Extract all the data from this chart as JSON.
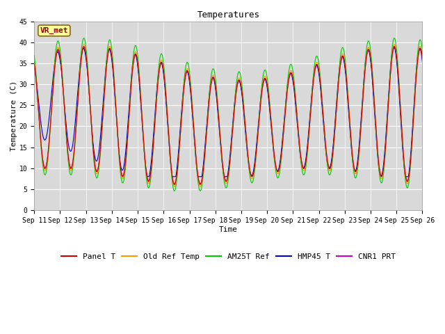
{
  "title": "Temperatures",
  "xlabel": "Time",
  "ylabel": "Temperature (C)",
  "ylim": [
    0,
    45
  ],
  "annotation": "VR_met",
  "legend_entries": [
    "Panel T",
    "Old Ref Temp",
    "AM25T Ref",
    "HMP45 T",
    "CNR1 PRT"
  ],
  "line_colors": [
    "#cc0000",
    "#ff9900",
    "#00cc00",
    "#0000cc",
    "#cc00cc"
  ],
  "background_color": "#d9d9d9",
  "xtick_labels": [
    "Sep 11",
    "Sep 12",
    "Sep 13",
    "Sep 14",
    "Sep 15",
    "Sep 16",
    "Sep 17",
    "Sep 18",
    "Sep 19",
    "Sep 20",
    "Sep 21",
    "Sep 22",
    "Sep 23",
    "Sep 24",
    "Sep 25",
    "Sep 26"
  ],
  "num_points": 4320,
  "title_fontsize": 9,
  "axis_label_fontsize": 8,
  "tick_fontsize": 7,
  "legend_fontsize": 8,
  "annotation_fontsize": 8
}
